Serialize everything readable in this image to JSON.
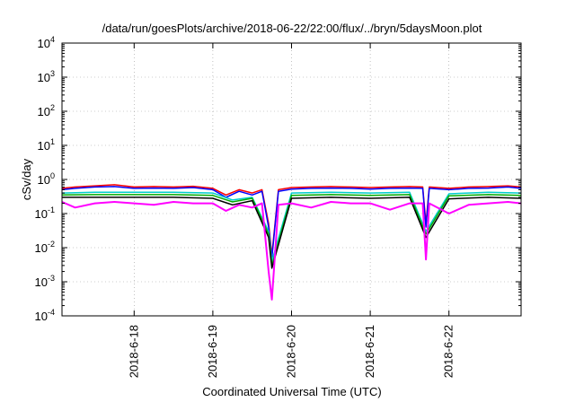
{
  "chart_data": {
    "type": "line",
    "title": "/data/run/goesPlots/archive/2018-06-22/22:00/flux/../bryn/5daysMoon.plot",
    "xlabel": "Coordinated Universal Time (UTC)",
    "ylabel": "cSv/day",
    "x_scale": "time",
    "y_scale": "log",
    "xlim": [
      "2018-06-17T02:00",
      "2018-06-22T22:00"
    ],
    "ylim": [
      0.0001,
      10000
    ],
    "grid": true,
    "legend": "none",
    "x_ticks": [
      {
        "label": "2018-6-18",
        "value": "2018-06-18T00:00"
      },
      {
        "label": "2018-6-19",
        "value": "2018-06-19T00:00"
      },
      {
        "label": "2018-6-20",
        "value": "2018-06-20T00:00"
      },
      {
        "label": "2018-6-21",
        "value": "2018-06-21T00:00"
      },
      {
        "label": "2018-6-22",
        "value": "2018-06-22T00:00"
      }
    ],
    "y_ticks": [
      {
        "base": "10",
        "exp": "-4",
        "value": 0.0001
      },
      {
        "base": "10",
        "exp": "-3",
        "value": 0.001
      },
      {
        "base": "10",
        "exp": "-2",
        "value": 0.01
      },
      {
        "base": "10",
        "exp": "-1",
        "value": 0.1
      },
      {
        "base": "10",
        "exp": "0",
        "value": 1
      },
      {
        "base": "10",
        "exp": "1",
        "value": 10
      },
      {
        "base": "10",
        "exp": "2",
        "value": 100
      },
      {
        "base": "10",
        "exp": "3",
        "value": 1000
      },
      {
        "base": "10",
        "exp": "4",
        "value": 10000
      }
    ],
    "series": [
      {
        "color": "#ff0000",
        "x": [
          "2018-06-17T02:00",
          "2018-06-17T06:00",
          "2018-06-17T12:00",
          "2018-06-17T18:00",
          "2018-06-18T00:00",
          "2018-06-18T06:00",
          "2018-06-18T12:00",
          "2018-06-18T18:00",
          "2018-06-19T00:00",
          "2018-06-19T04:00",
          "2018-06-19T08:00",
          "2018-06-19T12:00",
          "2018-06-19T15:00",
          "2018-06-19T17:00",
          "2018-06-19T18:00",
          "2018-06-19T20:00",
          "2018-06-20T00:00",
          "2018-06-20T06:00",
          "2018-06-20T12:00",
          "2018-06-20T18:00",
          "2018-06-21T00:00",
          "2018-06-21T06:00",
          "2018-06-21T12:00",
          "2018-06-21T16:00",
          "2018-06-21T17:00",
          "2018-06-21T18:00",
          "2018-06-22T00:00",
          "2018-06-22T06:00",
          "2018-06-22T12:00",
          "2018-06-22T18:00",
          "2018-06-22T22:00"
        ],
        "y": [
          0.55,
          0.6,
          0.65,
          0.7,
          0.6,
          0.62,
          0.6,
          0.63,
          0.55,
          0.35,
          0.5,
          0.4,
          0.5,
          0.05,
          0.006,
          0.5,
          0.58,
          0.6,
          0.62,
          0.6,
          0.58,
          0.6,
          0.62,
          0.6,
          0.05,
          0.6,
          0.55,
          0.6,
          0.62,
          0.65,
          0.6
        ]
      },
      {
        "color": "#0000ff",
        "x": [
          "2018-06-17T02:00",
          "2018-06-17T06:00",
          "2018-06-17T12:00",
          "2018-06-17T18:00",
          "2018-06-18T00:00",
          "2018-06-18T06:00",
          "2018-06-18T12:00",
          "2018-06-18T18:00",
          "2018-06-19T00:00",
          "2018-06-19T04:00",
          "2018-06-19T08:00",
          "2018-06-19T12:00",
          "2018-06-19T15:00",
          "2018-06-19T17:00",
          "2018-06-19T18:00",
          "2018-06-19T20:00",
          "2018-06-20T00:00",
          "2018-06-20T06:00",
          "2018-06-20T12:00",
          "2018-06-20T18:00",
          "2018-06-21T00:00",
          "2018-06-21T06:00",
          "2018-06-21T12:00",
          "2018-06-21T16:00",
          "2018-06-21T17:00",
          "2018-06-21T18:00",
          "2018-06-22T00:00",
          "2018-06-22T06:00",
          "2018-06-22T12:00",
          "2018-06-22T18:00",
          "2018-06-22T22:00"
        ],
        "y": [
          0.5,
          0.55,
          0.6,
          0.62,
          0.55,
          0.56,
          0.55,
          0.58,
          0.5,
          0.3,
          0.45,
          0.35,
          0.45,
          0.04,
          0.005,
          0.45,
          0.52,
          0.55,
          0.56,
          0.55,
          0.52,
          0.55,
          0.56,
          0.55,
          0.04,
          0.55,
          0.5,
          0.55,
          0.56,
          0.6,
          0.55
        ]
      },
      {
        "color": "#00cccc",
        "x": [
          "2018-06-17T02:00",
          "2018-06-17T12:00",
          "2018-06-18T00:00",
          "2018-06-18T12:00",
          "2018-06-19T00:00",
          "2018-06-19T06:00",
          "2018-06-19T12:00",
          "2018-06-19T17:00",
          "2018-06-19T18:00",
          "2018-06-20T00:00",
          "2018-06-20T12:00",
          "2018-06-21T00:00",
          "2018-06-21T12:00",
          "2018-06-21T17:00",
          "2018-06-22T00:00",
          "2018-06-22T12:00",
          "2018-06-22T22:00"
        ],
        "y": [
          0.4,
          0.42,
          0.42,
          0.42,
          0.4,
          0.25,
          0.3,
          0.03,
          0.004,
          0.4,
          0.42,
          0.4,
          0.42,
          0.03,
          0.38,
          0.42,
          0.4
        ]
      },
      {
        "color": "#00aa00",
        "x": [
          "2018-06-17T02:00",
          "2018-06-17T12:00",
          "2018-06-18T00:00",
          "2018-06-18T12:00",
          "2018-06-19T00:00",
          "2018-06-19T06:00",
          "2018-06-19T12:00",
          "2018-06-19T17:00",
          "2018-06-19T18:00",
          "2018-06-20T00:00",
          "2018-06-20T12:00",
          "2018-06-21T00:00",
          "2018-06-21T12:00",
          "2018-06-21T17:00",
          "2018-06-22T00:00",
          "2018-06-22T12:00",
          "2018-06-22T22:00"
        ],
        "y": [
          0.35,
          0.36,
          0.36,
          0.36,
          0.34,
          0.22,
          0.28,
          0.025,
          0.003,
          0.34,
          0.36,
          0.34,
          0.36,
          0.025,
          0.33,
          0.36,
          0.34
        ]
      },
      {
        "color": "#000000",
        "x": [
          "2018-06-17T02:00",
          "2018-06-17T12:00",
          "2018-06-18T00:00",
          "2018-06-18T12:00",
          "2018-06-19T00:00",
          "2018-06-19T06:00",
          "2018-06-19T12:00",
          "2018-06-19T17:00",
          "2018-06-19T18:00",
          "2018-06-20T00:00",
          "2018-06-20T12:00",
          "2018-06-21T00:00",
          "2018-06-21T12:00",
          "2018-06-21T17:00",
          "2018-06-22T00:00",
          "2018-06-22T12:00",
          "2018-06-22T22:00"
        ],
        "y": [
          0.3,
          0.3,
          0.3,
          0.3,
          0.28,
          0.18,
          0.24,
          0.02,
          0.0025,
          0.28,
          0.3,
          0.28,
          0.3,
          0.02,
          0.27,
          0.3,
          0.28
        ]
      },
      {
        "color": "#ff00ff",
        "x": [
          "2018-06-17T02:00",
          "2018-06-17T06:00",
          "2018-06-17T12:00",
          "2018-06-17T18:00",
          "2018-06-18T00:00",
          "2018-06-18T06:00",
          "2018-06-18T12:00",
          "2018-06-18T18:00",
          "2018-06-19T00:00",
          "2018-06-19T04:00",
          "2018-06-19T08:00",
          "2018-06-19T12:00",
          "2018-06-19T15:00",
          "2018-06-19T17:00",
          "2018-06-19T18:00",
          "2018-06-19T20:00",
          "2018-06-20T00:00",
          "2018-06-20T06:00",
          "2018-06-20T12:00",
          "2018-06-20T18:00",
          "2018-06-21T00:00",
          "2018-06-21T06:00",
          "2018-06-21T12:00",
          "2018-06-21T16:00",
          "2018-06-21T17:00",
          "2018-06-21T18:00",
          "2018-06-22T00:00",
          "2018-06-22T06:00",
          "2018-06-22T12:00",
          "2018-06-22T18:00",
          "2018-06-22T22:00"
        ],
        "y": [
          0.22,
          0.15,
          0.2,
          0.22,
          0.2,
          0.18,
          0.22,
          0.2,
          0.2,
          0.12,
          0.18,
          0.15,
          0.2,
          0.002,
          0.0003,
          0.18,
          0.2,
          0.15,
          0.22,
          0.2,
          0.2,
          0.13,
          0.2,
          0.2,
          0.0045,
          0.2,
          0.1,
          0.18,
          0.2,
          0.22,
          0.2
        ]
      }
    ]
  }
}
